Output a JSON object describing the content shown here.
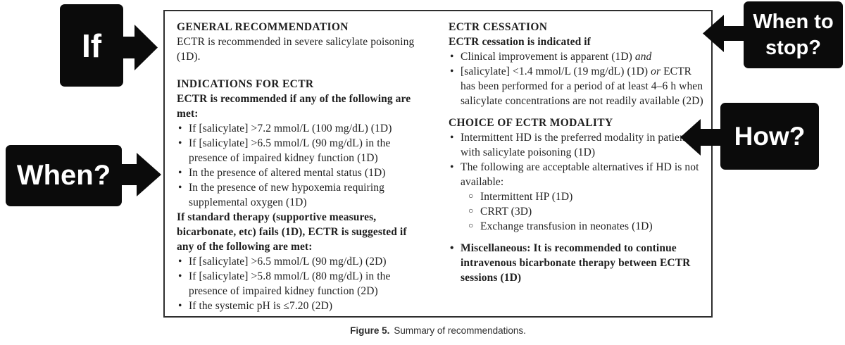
{
  "glyphs": {
    "bullet": "•",
    "sub_bullet": "○"
  },
  "callouts": {
    "if_label": "If",
    "when_label": "When?",
    "when_to_stop_label": "When to stop?",
    "how_label": "How?"
  },
  "caption": {
    "label": "Figure 5.",
    "text": "Summary of recommendations."
  },
  "panel": {
    "columns": [
      {
        "blocks": [
          {
            "type": "heading",
            "text": "GENERAL RECOMMENDATION"
          },
          {
            "type": "para",
            "runs": [
              "ECTR is recommended in severe salicylate poisoning (1D)."
            ]
          },
          {
            "type": "heading",
            "text": "INDICATIONS FOR ECTR",
            "space": "lg"
          },
          {
            "type": "para",
            "bold": true,
            "runs": [
              "ECTR is recommended if any of the following are met:"
            ]
          },
          {
            "type": "bullets",
            "items": [
              {
                "runs": [
                  "If [salicylate] >7.2 mmol/L (100 mg/dL) (1D)"
                ]
              },
              {
                "runs": [
                  "If [salicylate] >6.5 mmol/L (90 mg/dL) in the presence of impaired kidney function (1D)"
                ]
              },
              {
                "runs": [
                  "In the presence of altered mental status (1D)"
                ]
              },
              {
                "runs": [
                  "In the presence of new hypoxemia requiring supplemental oxygen (1D)"
                ]
              }
            ]
          },
          {
            "type": "para",
            "bold": true,
            "runs": [
              "If standard therapy (supportive measures, bicarbonate, etc) fails (1D), ECTR is suggested if any of the following are met:"
            ]
          },
          {
            "type": "bullets",
            "items": [
              {
                "runs": [
                  "If [salicylate] >6.5 mmol/L (90 mg/dL) (2D)"
                ]
              },
              {
                "runs": [
                  "If [salicylate] >5.8 mmol/L (80 mg/dL) in the presence of impaired kidney function (2D)"
                ]
              },
              {
                "runs": [
                  "If the systemic pH is ≤7.20 (2D)"
                ]
              }
            ]
          }
        ]
      },
      {
        "blocks": [
          {
            "type": "heading",
            "text": "ECTR CESSATION"
          },
          {
            "type": "para",
            "bold": true,
            "runs": [
              "ECTR cessation is indicated if"
            ]
          },
          {
            "type": "bullets",
            "items": [
              {
                "runs": [
                  "Clinical improvement is apparent (1D) ",
                  {
                    "text": "and",
                    "italic": true
                  }
                ]
              },
              {
                "runs": [
                  "[salicylate] <1.4 mmol/L (19 mg/dL) (1D) ",
                  {
                    "text": "or",
                    "italic": true
                  },
                  " ECTR has been performed for a period of at least 4–6 h when salicylate concentrations are not readily available (2D)"
                ]
              }
            ]
          },
          {
            "type": "heading",
            "text": "CHOICE OF ECTR MODALITY",
            "space": "md"
          },
          {
            "type": "bullets",
            "items": [
              {
                "runs": [
                  "Intermittent HD is the preferred modality in patients with salicylate poisoning (1D)"
                ]
              },
              {
                "runs": [
                  "The following are acceptable alternatives if HD is not available:"
                ],
                "sub": [
                  {
                    "runs": [
                      "Intermittent HP (1D)"
                    ]
                  },
                  {
                    "runs": [
                      "CRRT (3D)"
                    ]
                  },
                  {
                    "runs": [
                      "Exchange transfusion in neonates (1D)"
                    ]
                  }
                ]
              },
              {
                "runs": [
                  "Miscellaneous: It is recommended to continue intravenous bicarbonate therapy between ECTR sessions (1D)"
                ],
                "bold": true,
                "space": "md"
              }
            ]
          }
        ]
      }
    ]
  }
}
